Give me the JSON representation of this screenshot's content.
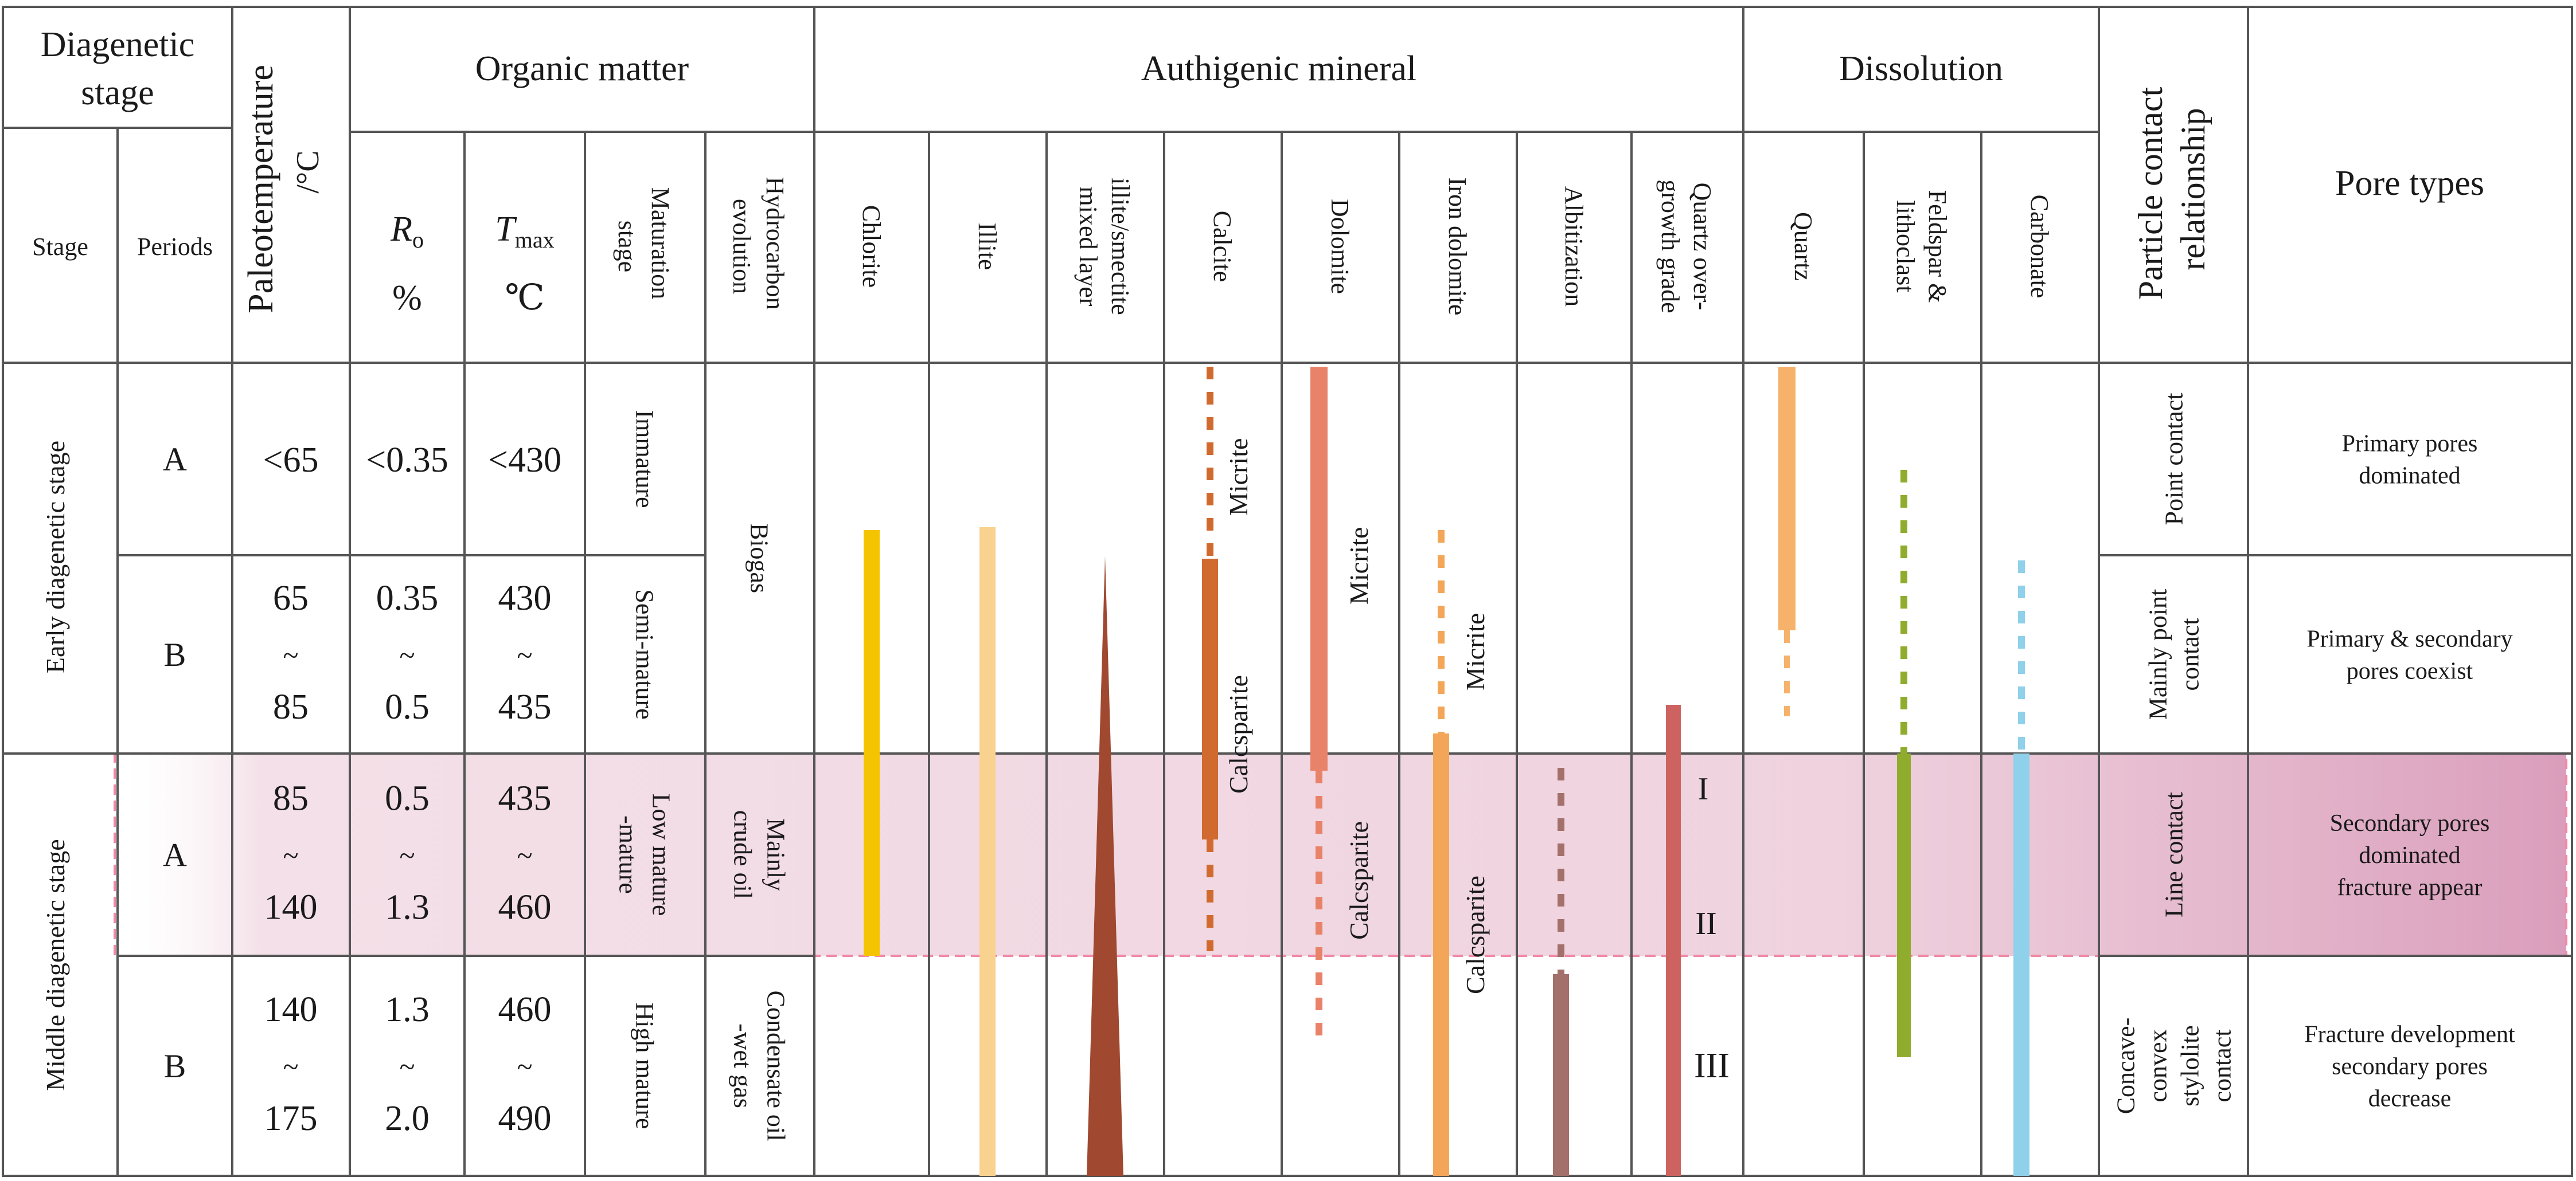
{
  "headers": {
    "diagenetic_stage_1": "Diagenetic",
    "diagenetic_stage_2": "stage",
    "stage": "Stage",
    "periods": "Periods",
    "paleotemperature": "Paleotemperature",
    "paleotemperature_unit": "/°C",
    "organic_matter": "Organic matter",
    "ro_symbol": "R",
    "ro_sub": "o",
    "ro_unit": "%",
    "tmax_symbol": "T",
    "tmax_sub": "max",
    "tmax_unit": "℃",
    "maturation_1": "Maturation",
    "maturation_2": "stage",
    "hydrocarbon_1": "Hydrocarbon",
    "hydrocarbon_2": "evolution",
    "authigenic_mineral": "Authigenic mineral",
    "minerals": [
      {
        "line1": "Chlorite",
        "line2": ""
      },
      {
        "line1": "Illite",
        "line2": ""
      },
      {
        "line1": "illite/smectite",
        "line2": "mixed layer"
      },
      {
        "line1": "Calcite",
        "line2": ""
      },
      {
        "line1": "Dolomite",
        "line2": ""
      },
      {
        "line1": "Iron dolomite",
        "line2": ""
      },
      {
        "line1": "Albitization",
        "line2": ""
      },
      {
        "line1": "Quartz over-",
        "line2": "growth grade"
      }
    ],
    "dissolution": "Dissolution",
    "dissolution_items": [
      {
        "line1": "Quartz",
        "line2": ""
      },
      {
        "line1": "Feldspar &",
        "line2": "lithoclast"
      },
      {
        "line1": "Carbonate",
        "line2": ""
      }
    ],
    "particle_1": "Particle contact",
    "particle_2": "relationship",
    "pore_types": "Pore types"
  },
  "stages": [
    {
      "name": "Early  diagenetic stage"
    },
    {
      "name": "Middle diagenetic stage"
    }
  ],
  "rows": [
    {
      "period": "A",
      "temp": [
        "<65"
      ],
      "ro": [
        "<0.35"
      ],
      "tmax": [
        "<430"
      ]
    },
    {
      "period": "B",
      "temp": [
        "65",
        "~",
        "85"
      ],
      "ro": [
        "0.35",
        "~",
        "0.5"
      ],
      "tmax": [
        "430",
        "~",
        "435"
      ]
    },
    {
      "period": "A",
      "temp": [
        "85",
        "~",
        "140"
      ],
      "ro": [
        "0.5",
        "~",
        "1.3"
      ],
      "tmax": [
        "435",
        "~",
        "460"
      ]
    },
    {
      "period": "B",
      "temp": [
        "140",
        "~",
        "175"
      ],
      "ro": [
        "1.3",
        "~",
        "2.0"
      ],
      "tmax": [
        "460",
        "~",
        "490"
      ]
    }
  ],
  "maturation": [
    {
      "lines": [
        "Immature"
      ]
    },
    {
      "lines": [
        "Semi-mature"
      ]
    },
    {
      "lines": [
        "Low mature",
        "-mature"
      ]
    },
    {
      "lines": [
        "High mature"
      ]
    }
  ],
  "hydrocarbon": [
    {
      "lines": [
        "Biogas"
      ]
    },
    {
      "lines": [
        "Mainly",
        "crude oil"
      ]
    },
    {
      "lines": [
        "Condensate oil",
        "-wet gas"
      ]
    }
  ],
  "mineral_labels": {
    "calcite_micrite": "Micrite",
    "calcite_calcsparite": "Calcsparite",
    "dolomite_micrite": "Micrite",
    "dolomite_calcsparite": "Calcsparite",
    "irondolomite_micrite": "Micrite",
    "irondolomite_calcsparite": "Calcsparite",
    "grade_1": "I",
    "grade_2": "II",
    "grade_3": "III"
  },
  "contact": [
    {
      "lines": [
        "Point contact"
      ]
    },
    {
      "lines": [
        "Mainly point",
        "contact"
      ]
    },
    {
      "lines": [
        "Line contact"
      ]
    },
    {
      "lines": [
        "Concave-",
        "convex",
        "stylolite",
        "contact"
      ]
    }
  ],
  "pores": [
    {
      "lines": [
        "Primary pores",
        "dominated"
      ]
    },
    {
      "lines": [
        "Primary & secondary",
        "pores coexist"
      ]
    },
    {
      "lines": [
        "Secondary pores",
        "dominated",
        "fracture appear"
      ]
    },
    {
      "lines": [
        "Fracture development",
        "secondary pores",
        "decrease"
      ]
    }
  ],
  "colors": {
    "grid": "#555555",
    "chlorite": "#f5c400",
    "illite": "#f8d28e",
    "mixed_layer": "#a04830",
    "calcite": "#d06a2e",
    "dolomite": "#e8836a",
    "iron_dolomite": "#f3a657",
    "albitization": "#a3706b",
    "quartz_overgrowth": "#cd6360",
    "quartz_dissolution": "#f6b26b",
    "feldspar": "#8fac2c",
    "carbonate": "#8fd0ea",
    "highlight": "#cd6a90",
    "highlight_border": "#f08aa6",
    "highlight_text": "#b07a90"
  }
}
